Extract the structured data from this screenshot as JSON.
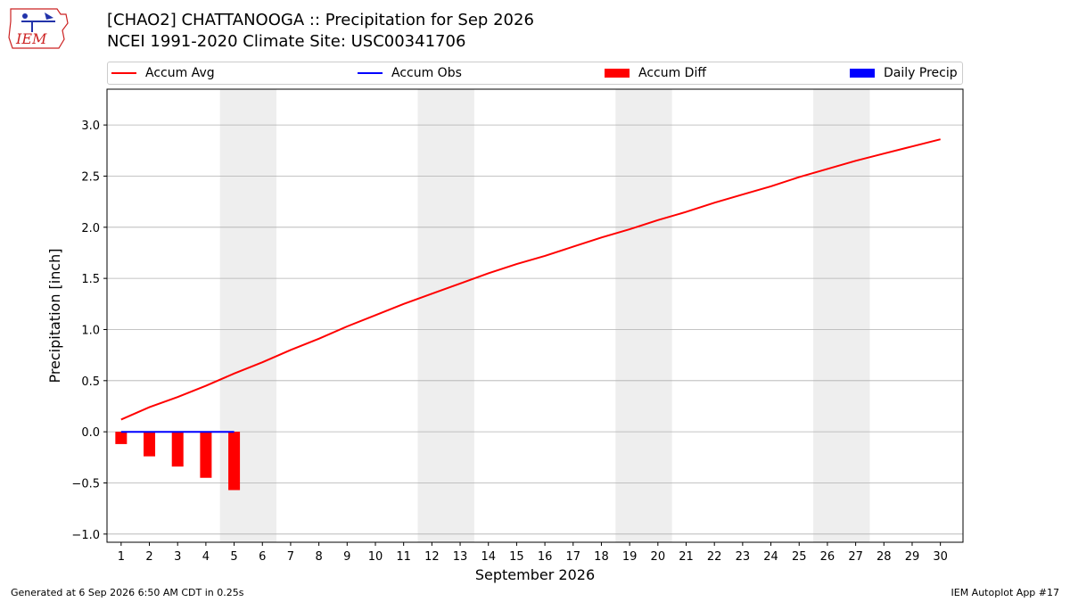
{
  "header": {
    "logo_text": "IEM",
    "title_line1": "[CHAO2] CHATTANOOGA :: Precipitation for Sep 2026",
    "title_line2": "NCEI 1991-2020 Climate Site: USC00341706"
  },
  "legend": {
    "items": [
      {
        "label": "Accum Avg",
        "kind": "line",
        "color": "#ff0000"
      },
      {
        "label": "Accum Obs",
        "kind": "line",
        "color": "#0000ff"
      },
      {
        "label": "Accum Diff",
        "kind": "patch",
        "color": "#ff0000"
      },
      {
        "label": "Daily Precip",
        "kind": "patch",
        "color": "#0000ff"
      }
    ]
  },
  "colors": {
    "accum_avg": "#ff0000",
    "accum_obs": "#0000ff",
    "accum_diff": "#ff0000",
    "weekend_shade": "#eeeeee",
    "grid": "#b0b0b0"
  },
  "chart_data": {
    "type": "line",
    "xlabel": "September 2026",
    "ylabel": "Precipitation [inch]",
    "x": [
      1,
      2,
      3,
      4,
      5,
      6,
      7,
      8,
      9,
      10,
      11,
      12,
      13,
      14,
      15,
      16,
      17,
      18,
      19,
      20,
      21,
      22,
      23,
      24,
      25,
      26,
      27,
      28,
      29,
      30
    ],
    "x_tick_labels": [
      "1",
      "2",
      "3",
      "4",
      "5",
      "6",
      "7",
      "8",
      "9",
      "10",
      "11",
      "12",
      "13",
      "14",
      "15",
      "16",
      "17",
      "18",
      "19",
      "20",
      "21",
      "22",
      "23",
      "24",
      "25",
      "26",
      "27",
      "28",
      "29",
      "30"
    ],
    "ylim": [
      -1.08,
      3.35
    ],
    "yticks": [
      -1.0,
      -0.5,
      0.0,
      0.5,
      1.0,
      1.5,
      2.0,
      2.5,
      3.0
    ],
    "ytick_labels": [
      "−1.0",
      "−0.5",
      "0.0",
      "0.5",
      "1.0",
      "1.5",
      "2.0",
      "2.5",
      "3.0"
    ],
    "grid": "horizontal",
    "legend_position": "top",
    "weekend_shading": [
      [
        5,
        6
      ],
      [
        12,
        13
      ],
      [
        19,
        20
      ],
      [
        26,
        27
      ]
    ],
    "series": [
      {
        "name": "Accum Avg",
        "type": "line",
        "values": [
          0.12,
          0.24,
          0.34,
          0.45,
          0.57,
          0.68,
          0.8,
          0.91,
          1.03,
          1.14,
          1.25,
          1.35,
          1.45,
          1.55,
          1.64,
          1.72,
          1.81,
          1.9,
          1.98,
          2.07,
          2.15,
          2.24,
          2.32,
          2.4,
          2.49,
          2.57,
          2.65,
          2.72,
          2.79,
          2.86
        ]
      },
      {
        "name": "Accum Obs",
        "type": "line",
        "x": [
          1,
          2,
          3,
          4,
          5
        ],
        "values": [
          0.0,
          0.0,
          0.0,
          0.0,
          0.0
        ]
      },
      {
        "name": "Accum Diff",
        "type": "bar",
        "x": [
          1,
          2,
          3,
          4,
          5
        ],
        "values": [
          -0.12,
          -0.24,
          -0.34,
          -0.45,
          -0.57
        ]
      },
      {
        "name": "Daily Precip",
        "type": "bar",
        "x": [
          1,
          2,
          3,
          4,
          5
        ],
        "values": [
          0.0,
          0.0,
          0.0,
          0.0,
          0.0
        ]
      }
    ]
  },
  "footer": {
    "left": "Generated at 6 Sep 2026 6:50 AM CDT in 0.25s",
    "right": "IEM Autoplot App #17"
  }
}
